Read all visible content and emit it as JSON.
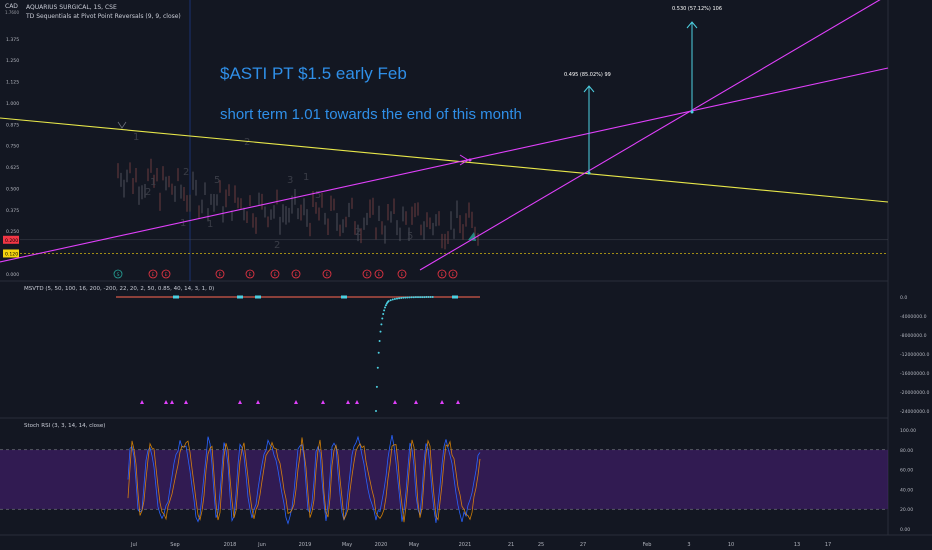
{
  "header": {
    "currency": "CAD",
    "sub_value": "1.7600",
    "symbol_title": "AQUARIUS SURGICAL, 1S, CSE",
    "indicator": "TD Sequentials at Pivot Point Reversals (9, 9, close)"
  },
  "annotations": {
    "pt_text": "$ASTI PT $1.5 early Feb",
    "short_term_text": "short term 1.01 towards the end of this month",
    "measure1": "0.495 (85.02%) 99",
    "measure2": "0.530 (57.12%) 106"
  },
  "msvtd_label": "MSVTD (5, 50, 100, 16, 200, -200, 22, 20, 2, 50, 0.85, 40, 14, 3, 1, 0)",
  "stoch_label": "Stoch RSI (3, 3, 14, 14, close)",
  "colors": {
    "background": "#131722",
    "trend_yellow": "#e8e84a",
    "trend_magenta": "#e040fb",
    "arrow_cyan": "#4dd0e1",
    "price_badge_red": "#f23645",
    "price_badge_yellow": "#f5d40f",
    "stoch_band": "#4a1f7a"
  },
  "chart_data": [
    {
      "type": "line",
      "panel": "price",
      "y_ticks": [
        "1.375",
        "1.250",
        "1.125",
        "1.000",
        "0.875",
        "0.750",
        "0.625",
        "0.500",
        "0.375",
        "0.250",
        "0.125",
        "0.000"
      ],
      "price_badges": [
        {
          "value": "0.200",
          "color": "red"
        },
        {
          "value": "0.120",
          "color": "yellow"
        }
      ],
      "x_ticks": [
        "Jul",
        "Sep",
        "2018",
        "Jun",
        "2019",
        "May",
        "2020",
        "May",
        "2021",
        "21",
        "25",
        "27",
        "Feb",
        "3",
        "10",
        "13",
        "17"
      ],
      "trendlines": [
        {
          "color": "yellow",
          "from": {
            "x": "Jul 2017",
            "y": 0.87
          },
          "to": {
            "x": "Feb 17",
            "y": 0.39
          }
        },
        {
          "color": "magenta",
          "from": {
            "x": "Jul 2017",
            "y": 0.12
          },
          "to": {
            "x": "Feb 17",
            "y": 1.15
          }
        },
        {
          "color": "magenta",
          "from": {
            "x": "Dec 2020",
            "y": 0.0
          },
          "to": {
            "x": "Feb 17",
            "y": 1.45
          }
        }
      ],
      "measurements": [
        {
          "label": "0.495 (85.02%) 99",
          "from_y": 0.58,
          "to_y": 1.07
        },
        {
          "label": "0.530 (57.12%) 106",
          "from_y": 0.89,
          "to_y": 1.42
        }
      ]
    },
    {
      "type": "scatter",
      "panel": "MSVTD",
      "y_ticks": [
        "0.0",
        "-4000000.0",
        "-8000000.0",
        "-12000000.0",
        "-16000000.0",
        "-20000000.0",
        "-24000000.0"
      ],
      "ylim": [
        -24000000,
        0
      ]
    },
    {
      "type": "line",
      "panel": "Stoch RSI",
      "y_ticks": [
        "100.00",
        "80.00",
        "60.00",
        "40.00",
        "20.00",
        "0.00"
      ],
      "ylim": [
        0,
        100
      ],
      "band": [
        20,
        80
      ]
    }
  ]
}
